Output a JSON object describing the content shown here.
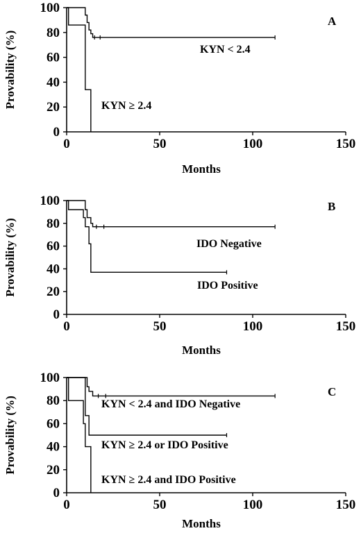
{
  "chart_data": [
    {
      "type": "line",
      "panel": "A",
      "xlabel": "Months",
      "ylabel": "Provability (%)",
      "xlim": [
        0,
        150
      ],
      "ylim": [
        0,
        100
      ],
      "xticks": [
        "0",
        "50",
        "100",
        "150"
      ],
      "yticks": [
        "0",
        "20",
        "40",
        "60",
        "80",
        "100"
      ],
      "series": [
        {
          "name": "KYN < 2.4",
          "step": true,
          "x": [
            0,
            8,
            10,
            11,
            12,
            13,
            14,
            112
          ],
          "y": [
            100,
            100,
            94,
            88,
            82,
            79,
            76,
            76
          ],
          "censor_x": [
            15,
            18,
            112
          ]
        },
        {
          "name": "KYN ≥ 2.4",
          "step": true,
          "x": [
            0,
            1,
            8,
            10,
            13
          ],
          "y": [
            100,
            86,
            86,
            34,
            0
          ],
          "censor_x": []
        }
      ]
    },
    {
      "type": "line",
      "panel": "B",
      "xlabel": "Months",
      "ylabel": "Provability (%)",
      "xlim": [
        0,
        150
      ],
      "ylim": [
        0,
        100
      ],
      "xticks": [
        "0",
        "50",
        "100",
        "150"
      ],
      "yticks": [
        "0",
        "20",
        "40",
        "60",
        "80",
        "100"
      ],
      "series": [
        {
          "name": "IDO Negative",
          "step": true,
          "x": [
            0,
            8,
            10,
            11,
            13,
            14,
            112
          ],
          "y": [
            100,
            100,
            92,
            85,
            80,
            77,
            77
          ],
          "censor_x": [
            16,
            20,
            112
          ]
        },
        {
          "name": "IDO Positive",
          "step": true,
          "x": [
            0,
            1,
            7,
            9,
            10,
            12,
            13,
            86
          ],
          "y": [
            100,
            92,
            92,
            85,
            77,
            62,
            37,
            37
          ],
          "censor_x": [
            86
          ]
        }
      ]
    },
    {
      "type": "line",
      "panel": "C",
      "xlabel": "Months",
      "ylabel": "Provability (%)",
      "xlim": [
        0,
        150
      ],
      "ylim": [
        0,
        100
      ],
      "xticks": [
        "0",
        "50",
        "100",
        "150"
      ],
      "yticks": [
        "0",
        "20",
        "40",
        "60",
        "80",
        "100"
      ],
      "series": [
        {
          "name": "KYN < 2.4 and IDO Negative",
          "step": true,
          "x": [
            0,
            9,
            11,
            12,
            14,
            112
          ],
          "y": [
            100,
            100,
            92,
            88,
            84,
            84
          ],
          "censor_x": [
            17,
            21,
            112
          ]
        },
        {
          "name": "KYN ≥ 2.4 or IDO Positive",
          "step": true,
          "x": [
            0,
            8,
            10,
            12,
            86
          ],
          "y": [
            100,
            100,
            67,
            50,
            50
          ],
          "censor_x": [
            86
          ]
        },
        {
          "name": "KYN ≥ 2.4 and IDO Positive",
          "step": true,
          "x": [
            0,
            1,
            7,
            9,
            10,
            13
          ],
          "y": [
            100,
            80,
            80,
            60,
            40,
            0
          ],
          "censor_x": []
        }
      ]
    }
  ]
}
